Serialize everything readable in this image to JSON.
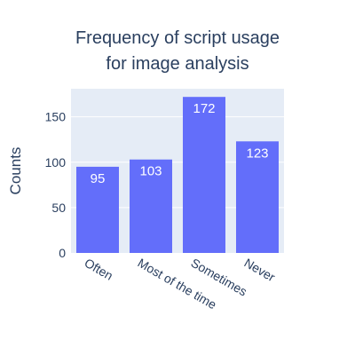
{
  "chart_data": {
    "type": "bar",
    "title_lines": [
      "Frequency of script usage",
      "for image analysis"
    ],
    "xlabel": "",
    "ylabel": "Counts",
    "categories": [
      "Often",
      "Most of the time",
      "Sometimes",
      "Never"
    ],
    "values": [
      95,
      103,
      172,
      123
    ],
    "data_labels": [
      "95",
      "103",
      "172",
      "123"
    ],
    "yticks": [
      0,
      50,
      100,
      150
    ],
    "ylim": [
      0,
      181
    ],
    "grid": true,
    "colors": {
      "bar": "#636efa",
      "plot_bg": "#e5ecf6",
      "grid": "#ffffff",
      "text": "#2a3f5f"
    }
  }
}
